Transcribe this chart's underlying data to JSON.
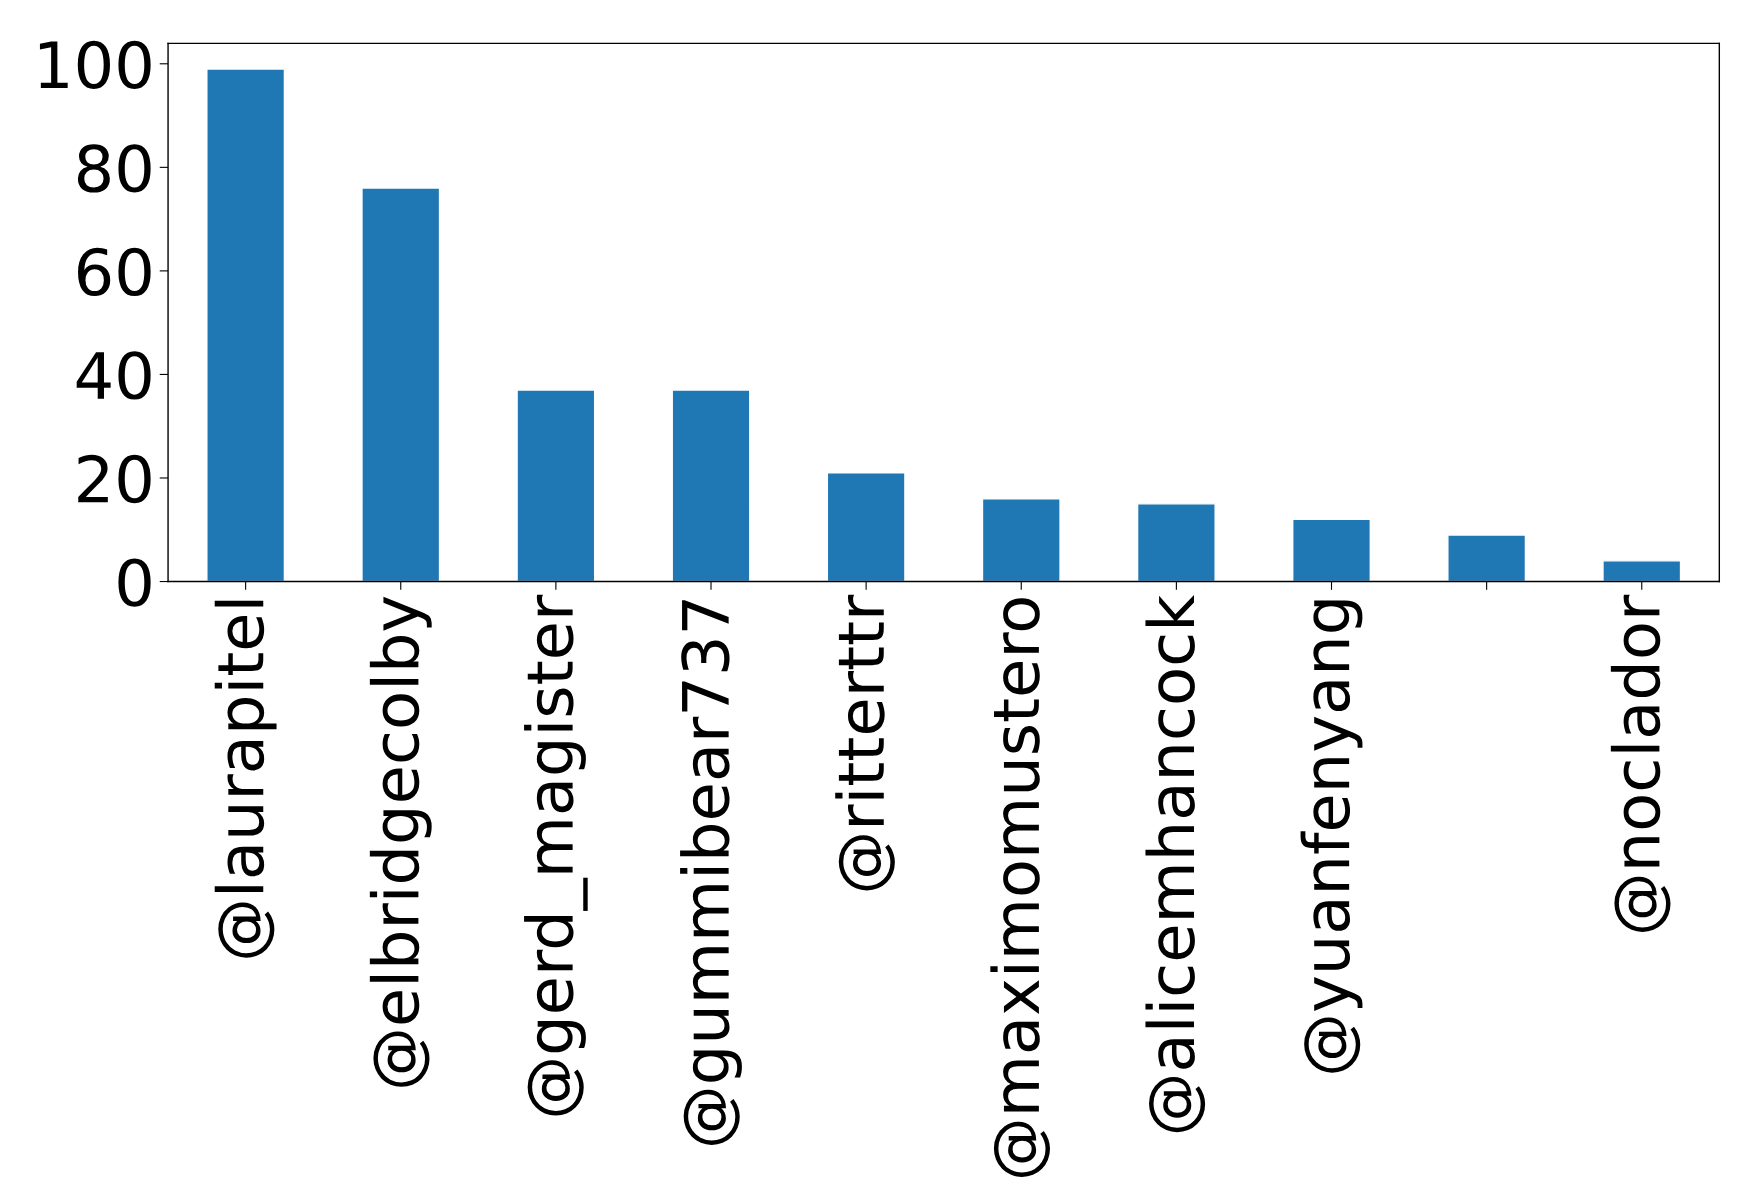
{
  "chart_data": {
    "type": "bar",
    "categories": [
      "@laurapitel",
      "@elbridgecolby",
      "@gerd_magister",
      "@gummibear737",
      "@ritterttr",
      "@maximomustero",
      "@alicemhancock",
      "@yuanfenyang",
      null,
      "@noclador"
    ],
    "values": [
      99,
      76,
      37,
      37,
      21,
      16,
      15,
      12,
      9,
      4
    ],
    "color": "#1f77b4",
    "ylim": [
      0,
      103.95
    ],
    "yticks": [
      0,
      20,
      40,
      60,
      80,
      100
    ],
    "grid": false
  }
}
